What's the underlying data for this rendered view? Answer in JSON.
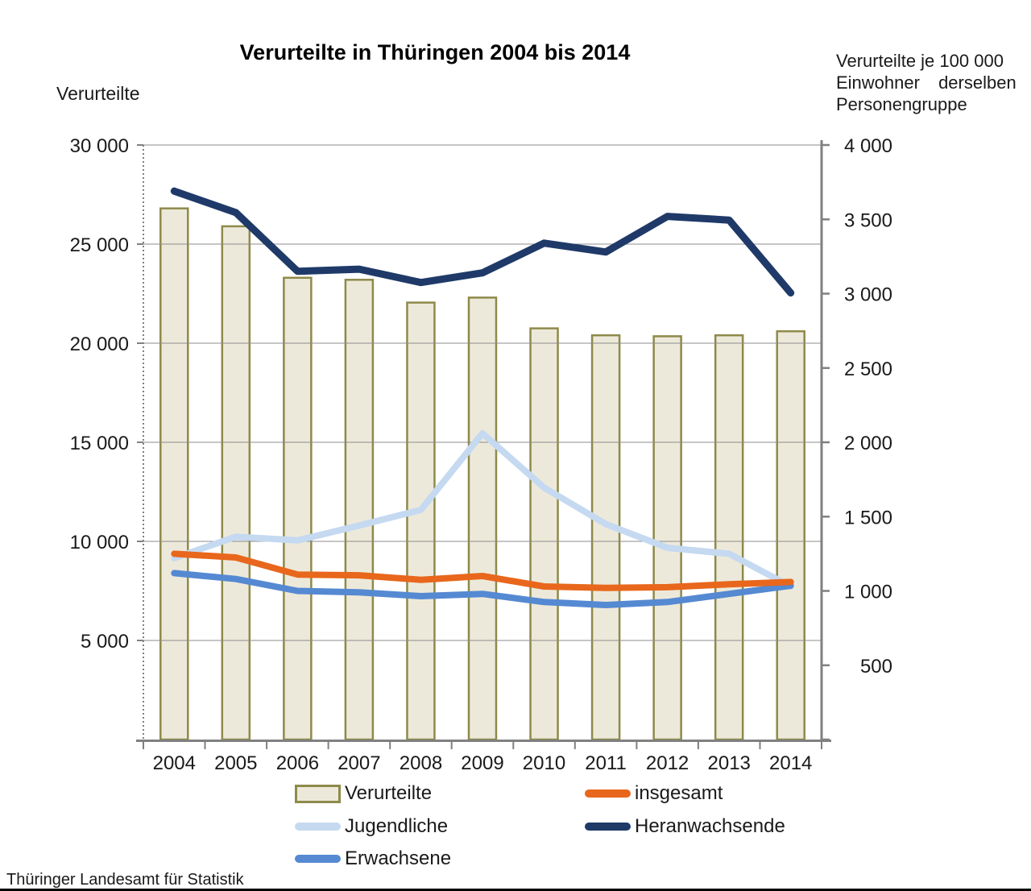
{
  "page": {
    "title": "Verurteilte in Thüringen 2004 bis 2014"
  },
  "left_axis": {
    "title": "Verurteilte",
    "tick_values": [
      30000,
      25000,
      20000,
      15000,
      10000,
      5000
    ],
    "tick_labels": [
      "30 000",
      "25 000",
      "20 000",
      "15 000",
      "10 000",
      "5 000"
    ]
  },
  "right_axis": {
    "title_lines": [
      "Verurteilte je 100 000",
      "Einwohner derselben",
      "Personengruppe"
    ],
    "tick_values": [
      4000,
      3500,
      3000,
      2500,
      2000,
      1500,
      1000,
      500
    ],
    "tick_labels": [
      "4 000",
      "3 500",
      "3 000",
      "2 500",
      "2 000",
      "1 500",
      "1 000",
      "500"
    ]
  },
  "legend": {
    "items": [
      {
        "label": "Verurteilte",
        "swatch": "bar"
      },
      {
        "label": "insgesamt",
        "swatch": "insgesamt"
      },
      {
        "label": "Jugendliche",
        "swatch": "jugendliche"
      },
      {
        "label": "Heranwachsende",
        "swatch": "heranwachsende"
      },
      {
        "label": "Erwachsene",
        "swatch": "erwachsene"
      }
    ]
  },
  "footer": "Thüringer Landesamt für Statistik",
  "colors": {
    "bar_fill": "#EDE9DA",
    "bar_border": "#8E8A4A",
    "insgesamt": "#E8671C",
    "jugendliche": "#C5D9F1",
    "heranwachsende": "#1F3A68",
    "erwachsene": "#5589D2",
    "grid": "#8C8C8C",
    "axis": "#808080",
    "text": "#1A1A1A",
    "bottom_bar": "#000000"
  },
  "chart_data": {
    "type": "bar+line",
    "title": "Verurteilte in Thüringen 2004 bis 2014",
    "categories": [
      "2004",
      "2005",
      "2006",
      "2007",
      "2008",
      "2009",
      "2010",
      "2011",
      "2012",
      "2013",
      "2014"
    ],
    "bar_series": {
      "name": "Verurteilte",
      "axis": "left",
      "values": [
        26800,
        25900,
        23300,
        23200,
        22050,
        22300,
        20750,
        20400,
        20350,
        20400,
        20600
      ]
    },
    "line_series": [
      {
        "name": "Jugendliche",
        "axis": "right",
        "color": "jugendliche",
        "width": 8,
        "values": [
          1220,
          1365,
          1340,
          1440,
          1545,
          2060,
          1695,
          1450,
          1290,
          1250,
          1030
        ]
      },
      {
        "name": "Erwachsene",
        "axis": "right",
        "color": "erwachsene",
        "width": 8,
        "values": [
          1120,
          1080,
          1000,
          990,
          965,
          980,
          925,
          905,
          925,
          980,
          1035
        ]
      },
      {
        "name": "insgesamt",
        "axis": "right",
        "color": "insgesamt",
        "width": 8,
        "values": [
          1250,
          1225,
          1110,
          1105,
          1075,
          1100,
          1030,
          1020,
          1025,
          1045,
          1060
        ]
      },
      {
        "name": "Heranwachsende",
        "axis": "right",
        "color": "heranwachsende",
        "width": 9,
        "values": [
          3690,
          3545,
          3150,
          3165,
          3075,
          3140,
          3340,
          3280,
          3520,
          3495,
          3005
        ]
      }
    ],
    "left_ylabel": "Verurteilte",
    "right_ylabel": "Verurteilte je 100 000 Einwohner derselben Personengruppe",
    "left_ylim": [
      0,
      30000
    ],
    "right_ylim": [
      0,
      4000
    ],
    "grid": true,
    "legend_position": "bottom"
  }
}
